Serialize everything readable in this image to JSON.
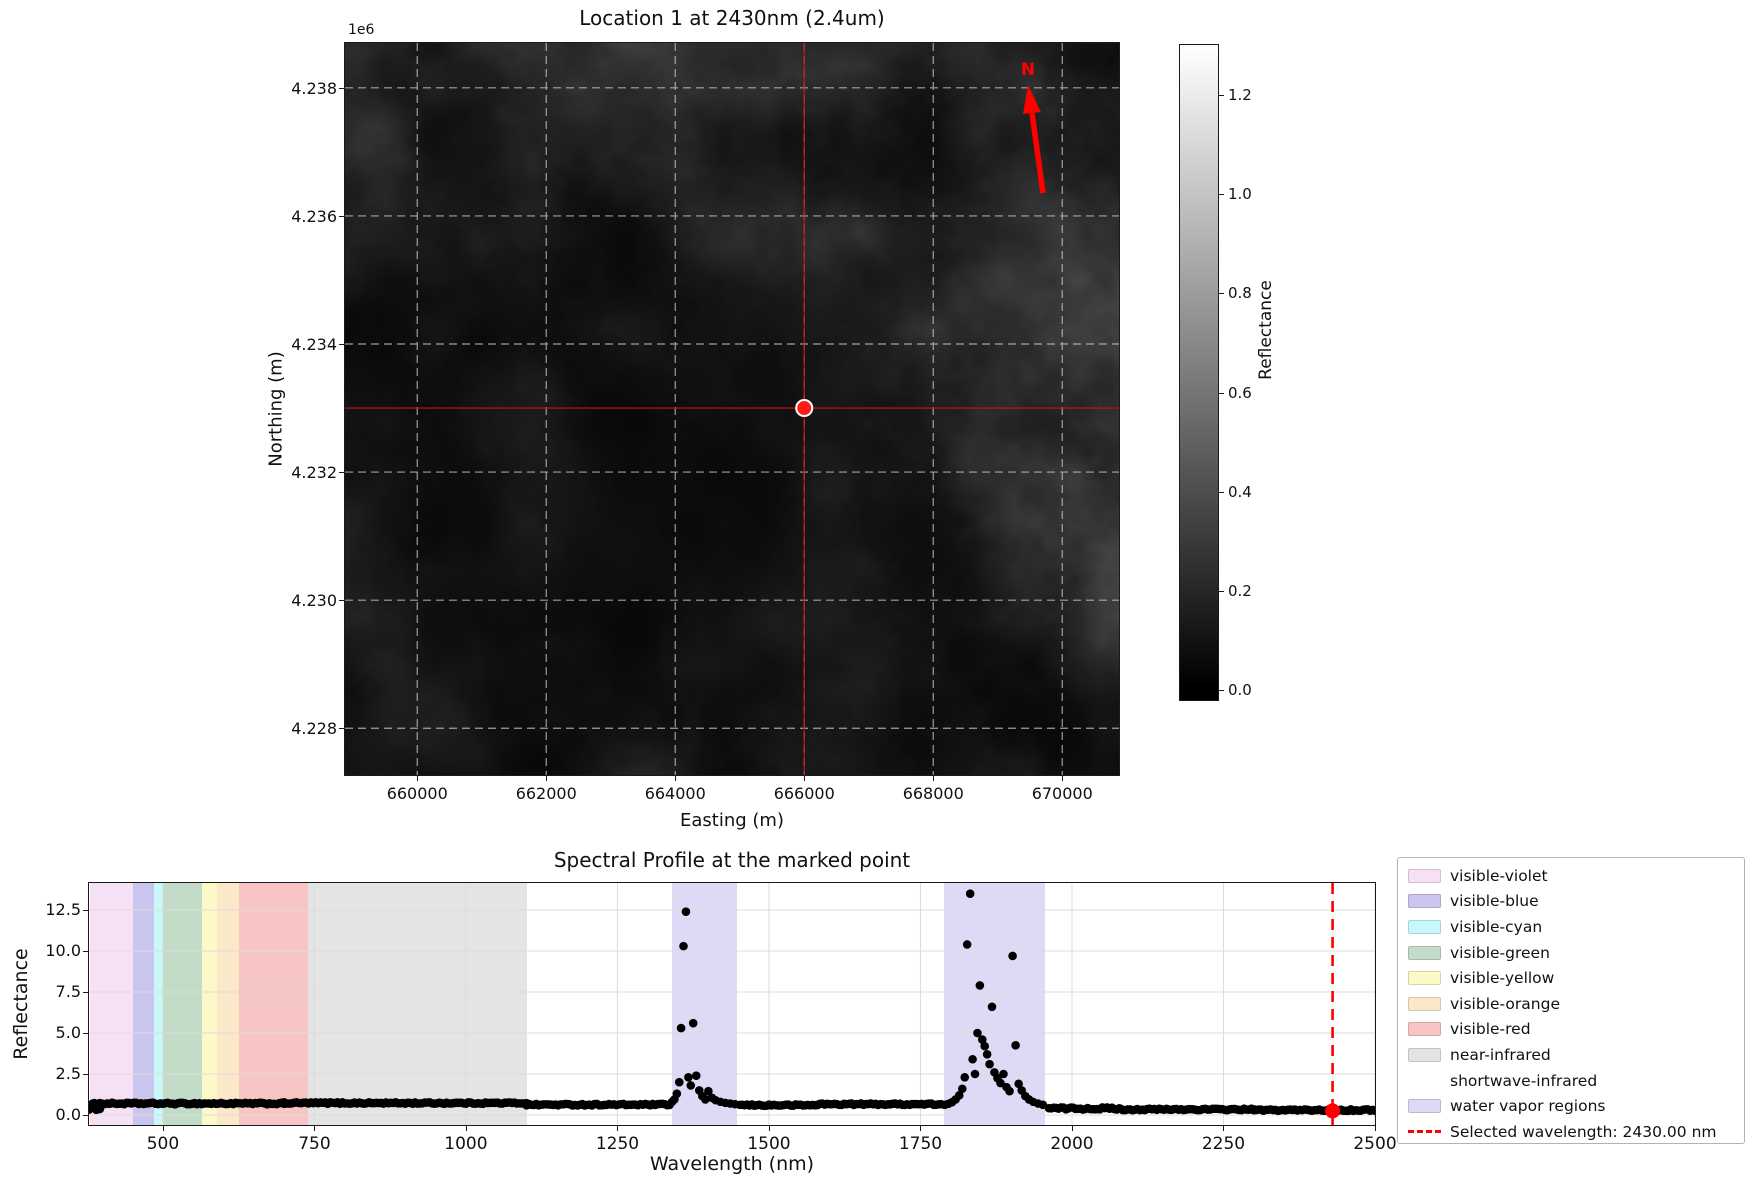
{
  "chart_data": [
    {
      "type": "heatmap",
      "title": "Location 1 at 2430nm (2.4um)",
      "xlabel": "Easting (m)",
      "ylabel": "Northing (m)",
      "y_offset": "1e6",
      "xlim": [
        658880,
        670880
      ],
      "ylim": [
        4227270,
        4238700
      ],
      "x_ticks": [
        {
          "v": 660000,
          "label": "660000"
        },
        {
          "v": 662000,
          "label": "662000"
        },
        {
          "v": 664000,
          "label": "664000"
        },
        {
          "v": 666000,
          "label": "666000"
        },
        {
          "v": 668000,
          "label": "668000"
        },
        {
          "v": 670000,
          "label": "670000"
        }
      ],
      "y_ticks": [
        {
          "v": 4238000,
          "label": "4.238"
        },
        {
          "v": 4236000,
          "label": "4.236"
        },
        {
          "v": 4234000,
          "label": "4.234"
        },
        {
          "v": 4232000,
          "label": "4.232"
        },
        {
          "v": 4230000,
          "label": "4.230"
        },
        {
          "v": 4228000,
          "label": "4.228"
        }
      ],
      "colormap": "gray",
      "colorbar": {
        "label": "Reflectance",
        "vmin": 0.0,
        "vmax": 1.3,
        "ticks": [
          "0.0",
          "0.2",
          "0.4",
          "0.6",
          "0.8",
          "1.0",
          "1.2"
        ]
      },
      "marked_point": {
        "easting": 666000,
        "northing": 4233000,
        "color": "#ff1a1a",
        "edge": "#ffffff"
      },
      "crosshair_color": "#cc1111",
      "north_arrow": {
        "label": "N",
        "color": "#ff0000"
      },
      "terrain": {
        "seed": 9,
        "cell": 96,
        "octaves": 5,
        "base": 6,
        "amp": 60,
        "gamma": 1.55
      },
      "description": "Dark grayscale reflectance image (mostly 0.0-0.3) with cloud-like terrain texture"
    },
    {
      "type": "scatter",
      "title": "Spectral Profile at the marked point",
      "xlabel": "Wavelength (nm)",
      "ylabel": "Reflectance",
      "xlim": [
        378,
        2500
      ],
      "ylim": [
        -0.61,
        14.15
      ],
      "x_ticks": [
        500,
        750,
        1000,
        1250,
        1500,
        1750,
        2000,
        2250,
        2500
      ],
      "y_ticks": [
        "0.0",
        "2.5",
        "5.0",
        "7.5",
        "10.0",
        "12.5"
      ],
      "marker": {
        "color": "#000000",
        "radius": 4.3
      },
      "grid_color": "#dcdcdc",
      "bands": [
        {
          "name": "visible-violet",
          "ranges": [
            [
              380,
              450
            ]
          ],
          "color": "#f6e0f6"
        },
        {
          "name": "visible-blue",
          "ranges": [
            [
              450,
              485
            ]
          ],
          "color": "#c9c5ec"
        },
        {
          "name": "visible-cyan",
          "ranges": [
            [
              485,
              500
            ]
          ],
          "color": "#c8f8fa"
        },
        {
          "name": "visible-green",
          "ranges": [
            [
              500,
              565
            ]
          ],
          "color": "#c3dcc7"
        },
        {
          "name": "visible-yellow",
          "ranges": [
            [
              565,
              590
            ]
          ],
          "color": "#fcf9c9"
        },
        {
          "name": "visible-orange",
          "ranges": [
            [
              590,
              625
            ]
          ],
          "color": "#fae8c9"
        },
        {
          "name": "visible-red",
          "ranges": [
            [
              625,
              740
            ]
          ],
          "color": "#f7c6c4"
        },
        {
          "name": "near-infrared",
          "ranges": [
            [
              740,
              1100
            ]
          ],
          "color": "#e4e4e4"
        },
        {
          "name": "shortwave-infrared",
          "ranges": [],
          "color": "none"
        },
        {
          "name": "water vapor regions",
          "ranges": [
            [
              1340,
              1448
            ],
            [
              1788,
              1955
            ]
          ],
          "color": "#dedaf6"
        }
      ],
      "baseline_segments": [
        {
          "from": 378,
          "to": 396,
          "step": 3,
          "value": 0.52,
          "jitter": 0.22
        },
        {
          "from": 396,
          "to": 700,
          "step": 4,
          "value": 0.7,
          "jitter": 0.05
        },
        {
          "from": 700,
          "to": 1100,
          "step": 4,
          "value": 0.73,
          "jitter": 0.05
        },
        {
          "from": 1100,
          "to": 1338,
          "step": 4,
          "value": 0.63,
          "jitter": 0.05
        },
        {
          "from": 1452,
          "to": 1580,
          "step": 4,
          "value": 0.6,
          "jitter": 0.05
        },
        {
          "from": 1580,
          "to": 1786,
          "step": 4,
          "value": 0.66,
          "jitter": 0.05
        },
        {
          "from": 1962,
          "to": 2080,
          "step": 4,
          "value": 0.4,
          "jitter": 0.07
        },
        {
          "from": 2080,
          "to": 2300,
          "step": 4,
          "value": 0.34,
          "jitter": 0.05
        },
        {
          "from": 2300,
          "to": 2500,
          "step": 4,
          "value": 0.3,
          "jitter": 0.05
        }
      ],
      "spike_points_1": [
        [
          1340,
          0.8
        ],
        [
          1344,
          0.95
        ],
        [
          1348,
          1.3
        ],
        [
          1352,
          2.0
        ],
        [
          1355,
          5.3
        ],
        [
          1359,
          10.3
        ],
        [
          1363,
          12.4
        ],
        [
          1367,
          2.3
        ],
        [
          1371,
          1.8
        ],
        [
          1375,
          5.6
        ],
        [
          1380,
          2.4
        ],
        [
          1385,
          1.5
        ],
        [
          1390,
          1.15
        ],
        [
          1395,
          0.95
        ],
        [
          1400,
          1.45
        ],
        [
          1406,
          1.05
        ],
        [
          1412,
          0.9
        ],
        [
          1420,
          0.8
        ],
        [
          1428,
          0.74
        ],
        [
          1436,
          0.7
        ],
        [
          1444,
          0.66
        ]
      ],
      "spike_points_2": [
        [
          1790,
          0.62
        ],
        [
          1796,
          0.68
        ],
        [
          1802,
          0.78
        ],
        [
          1808,
          0.95
        ],
        [
          1814,
          1.2
        ],
        [
          1819,
          1.6
        ],
        [
          1823,
          2.3
        ],
        [
          1827,
          10.4
        ],
        [
          1832,
          13.5
        ],
        [
          1836,
          3.4
        ],
        [
          1840,
          2.5
        ],
        [
          1844,
          5.0
        ],
        [
          1848,
          7.9
        ],
        [
          1852,
          4.6
        ],
        [
          1856,
          4.2
        ],
        [
          1860,
          3.7
        ],
        [
          1864,
          3.1
        ],
        [
          1868,
          6.6
        ],
        [
          1872,
          2.6
        ],
        [
          1877,
          2.25
        ],
        [
          1882,
          1.95
        ],
        [
          1887,
          2.5
        ],
        [
          1892,
          1.7
        ],
        [
          1897,
          1.45
        ],
        [
          1902,
          9.7
        ],
        [
          1907,
          4.25
        ],
        [
          1912,
          1.9
        ],
        [
          1917,
          1.5
        ],
        [
          1923,
          1.15
        ],
        [
          1929,
          0.95
        ],
        [
          1936,
          0.8
        ],
        [
          1944,
          0.7
        ],
        [
          1952,
          0.62
        ]
      ],
      "selected": {
        "wavelength": 2430.0,
        "value": 0.25,
        "label": "Selected wavelength: 2430.00 nm",
        "color": "#ff0000"
      },
      "rng_seed": 1234
    }
  ]
}
